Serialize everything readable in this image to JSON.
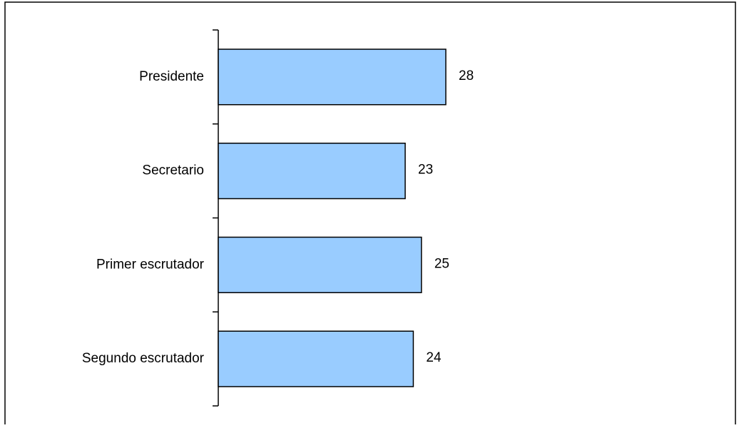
{
  "chart_data": {
    "type": "bar",
    "orientation": "horizontal",
    "categories": [
      "Presidente",
      "Secretario",
      "Primer escrutador",
      "Segundo escrutador"
    ],
    "values": [
      28,
      23,
      25,
      24
    ],
    "title": "",
    "xlabel": "",
    "ylabel": "",
    "xlim": [
      0,
      28
    ],
    "grid": false,
    "legend": "none",
    "bar_color": "#99ccff",
    "bar_edge_color": "#000000",
    "data_labels": true
  }
}
